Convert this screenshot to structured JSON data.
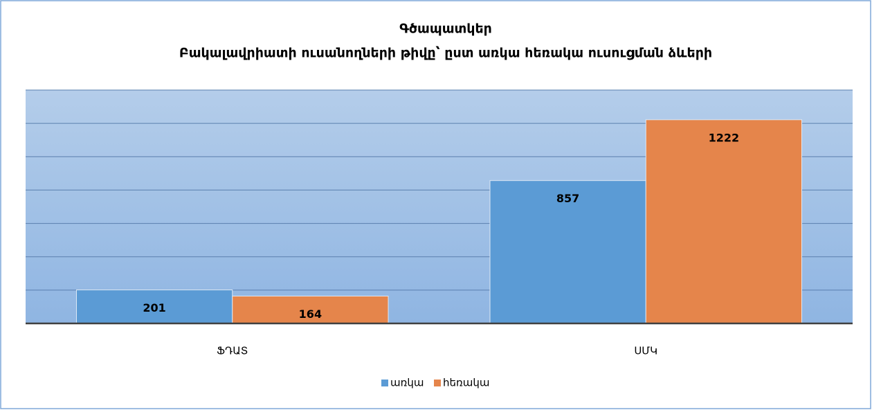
{
  "chart_data": {
    "type": "bar",
    "title": "Գծապատկեր",
    "subtitle": "Բակալավրիատի ուսանողների թիվը՝ ըստ առկա հեռակա ուսուցման ձևերի",
    "categories": [
      "ՖԴԱՏ",
      "ՍՄԿ"
    ],
    "series": [
      {
        "name": "առկա",
        "color": "#5b9bd5",
        "values": [
          201,
          857
        ]
      },
      {
        "name": "հեռակա",
        "color": "#e5854b",
        "values": [
          164,
          1222
        ]
      }
    ],
    "ylim": [
      0,
      1400
    ],
    "yticks": [
      0,
      200,
      400,
      600,
      800,
      1000,
      1200,
      1400
    ],
    "grid": true,
    "legend": "bottom"
  }
}
